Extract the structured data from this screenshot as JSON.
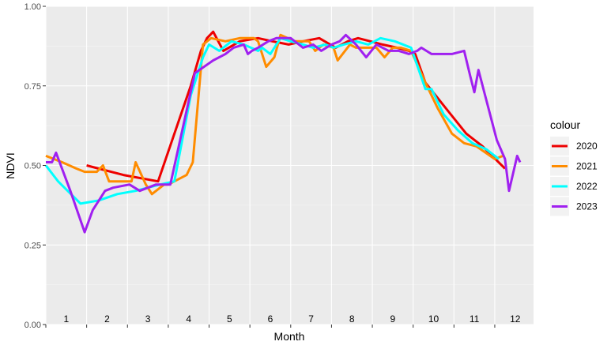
{
  "chart_data": {
    "type": "line",
    "xlabel": "Month",
    "ylabel": "NDVI",
    "ylim": [
      0,
      1
    ],
    "y_ticks": [
      "0.00",
      "0.25",
      "0.50",
      "0.75",
      "1.00"
    ],
    "month_labels": [
      "1",
      "2",
      "3",
      "4",
      "5",
      "6",
      "7",
      "8",
      "9",
      "10",
      "11",
      "12"
    ],
    "xlim_months": [
      1,
      12.95
    ],
    "grid": true,
    "background": "#ebebeb",
    "legend": {
      "title": "colour",
      "placement": "right"
    },
    "series": [
      {
        "name": "2020",
        "color": "#ee0000",
        "x": [
          2.0,
          2.9,
          3.75,
          4.55,
          4.8,
          4.95,
          5.1,
          5.35,
          5.75,
          6.2,
          6.55,
          6.95,
          7.3,
          7.7,
          8.1,
          8.4,
          8.65,
          8.95,
          9.25,
          9.6,
          9.9,
          10.05,
          10.3,
          10.8,
          11.3,
          11.7,
          12.25
        ],
        "y": [
          0.5,
          0.47,
          0.45,
          0.75,
          0.86,
          0.9,
          0.92,
          0.86,
          0.89,
          0.9,
          0.89,
          0.88,
          0.89,
          0.9,
          0.87,
          0.89,
          0.9,
          0.89,
          0.88,
          0.87,
          0.86,
          0.85,
          0.76,
          0.68,
          0.6,
          0.56,
          0.49
        ]
      },
      {
        "name": "2021",
        "color": "#ff8c00",
        "x": [
          1.0,
          1.4,
          1.75,
          1.95,
          2.25,
          2.4,
          2.55,
          2.8,
          3.1,
          3.2,
          3.45,
          3.6,
          3.9,
          4.0,
          4.45,
          4.6,
          4.85,
          5.05,
          5.4,
          5.75,
          6.1,
          6.2,
          6.4,
          6.6,
          6.75,
          7.1,
          7.45,
          7.6,
          7.8,
          8.05,
          8.15,
          8.45,
          8.6,
          8.75,
          9.1,
          9.3,
          9.5,
          9.7,
          9.95,
          10.3,
          10.6,
          10.95,
          11.25,
          11.55,
          12.0,
          12.2
        ],
        "y": [
          0.53,
          0.51,
          0.49,
          0.48,
          0.48,
          0.5,
          0.45,
          0.45,
          0.45,
          0.51,
          0.44,
          0.41,
          0.44,
          0.44,
          0.47,
          0.51,
          0.88,
          0.9,
          0.89,
          0.9,
          0.9,
          0.89,
          0.81,
          0.84,
          0.91,
          0.89,
          0.89,
          0.86,
          0.88,
          0.87,
          0.83,
          0.88,
          0.87,
          0.87,
          0.87,
          0.84,
          0.87,
          0.87,
          0.86,
          0.76,
          0.68,
          0.6,
          0.57,
          0.56,
          0.52,
          0.53
        ]
      },
      {
        "name": "2022",
        "color": "#00ffff",
        "x": [
          1.0,
          1.3,
          1.85,
          2.3,
          2.75,
          3.2,
          3.5,
          3.8,
          4.15,
          4.55,
          4.85,
          5.0,
          5.25,
          5.55,
          5.85,
          6.2,
          6.3,
          6.5,
          6.75,
          7.0,
          7.3,
          7.55,
          7.85,
          8.05,
          8.3,
          8.6,
          8.9,
          9.2,
          9.55,
          9.95,
          10.3,
          10.45,
          10.75,
          11.1,
          11.45,
          11.8,
          12.1
        ],
        "y": [
          0.5,
          0.45,
          0.38,
          0.39,
          0.41,
          0.42,
          0.43,
          0.44,
          0.45,
          0.72,
          0.84,
          0.88,
          0.86,
          0.89,
          0.88,
          0.86,
          0.87,
          0.85,
          0.9,
          0.89,
          0.88,
          0.87,
          0.88,
          0.87,
          0.88,
          0.89,
          0.88,
          0.9,
          0.89,
          0.87,
          0.74,
          0.74,
          0.66,
          0.61,
          0.57,
          0.55,
          0.52
        ]
      },
      {
        "name": "2023",
        "color": "#a020f0",
        "x": [
          1.0,
          1.15,
          1.25,
          1.6,
          1.95,
          2.15,
          2.45,
          2.65,
          3.05,
          3.3,
          3.7,
          4.05,
          4.65,
          5.1,
          5.4,
          5.6,
          5.85,
          5.95,
          6.05,
          6.2,
          6.45,
          6.65,
          6.85,
          7.0,
          7.3,
          7.55,
          7.75,
          8.0,
          8.2,
          8.35,
          8.6,
          8.85,
          9.1,
          9.4,
          9.65,
          9.9,
          10.1,
          10.2,
          10.45,
          10.65,
          10.95,
          11.25,
          11.4,
          11.5,
          11.6,
          12.05,
          12.25,
          12.35,
          12.55,
          12.62
        ],
        "y": [
          0.51,
          0.51,
          0.54,
          0.42,
          0.29,
          0.36,
          0.42,
          0.43,
          0.44,
          0.42,
          0.44,
          0.44,
          0.79,
          0.83,
          0.85,
          0.87,
          0.88,
          0.85,
          0.86,
          0.87,
          0.89,
          0.9,
          0.9,
          0.9,
          0.87,
          0.88,
          0.86,
          0.88,
          0.89,
          0.91,
          0.88,
          0.84,
          0.88,
          0.86,
          0.86,
          0.85,
          0.86,
          0.87,
          0.85,
          0.85,
          0.85,
          0.86,
          0.78,
          0.73,
          0.8,
          0.58,
          0.52,
          0.42,
          0.53,
          0.51
        ]
      }
    ]
  }
}
